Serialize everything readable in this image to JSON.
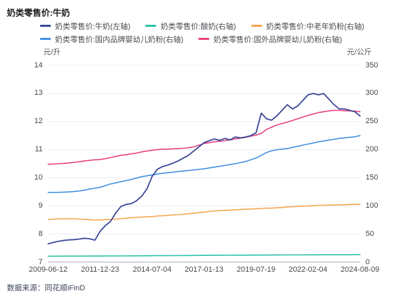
{
  "title": "奶类零售价:牛奶",
  "source": "数据来源：同花顺iFinD",
  "chart_data": {
    "type": "line",
    "title": "奶类零售价:牛奶",
    "grid": true,
    "legend_position": "top",
    "x_tick_labels": [
      "2009-06-12",
      "2011-12-23",
      "2014-07-04",
      "2017-01-13",
      "2019-07-19",
      "2022-02-04",
      "2024-08-09"
    ],
    "left_axis": {
      "unit": "元/升",
      "range": [
        7,
        14
      ],
      "ticks": [
        14,
        13,
        12,
        11,
        10,
        9,
        8,
        7
      ]
    },
    "right_axis": {
      "unit": "元/公斤",
      "range": [
        0,
        350
      ],
      "ticks": [
        350,
        300,
        250,
        200,
        150,
        100,
        50,
        0
      ]
    },
    "legend_rows": [
      [
        0,
        1,
        2
      ],
      [
        3,
        4
      ]
    ],
    "draw_order": [
      1,
      2,
      3,
      4,
      0
    ],
    "series": [
      {
        "name": "奶类零售价:牛奶(左轴)",
        "axis": "left",
        "color": "#3B4697",
        "values": [
          7.65,
          7.7,
          7.74,
          7.77,
          7.79,
          7.8,
          7.82,
          7.85,
          7.83,
          7.78,
          8.1,
          8.3,
          8.45,
          8.75,
          8.98,
          9.05,
          9.08,
          9.18,
          9.35,
          9.6,
          10.05,
          10.3,
          10.4,
          10.45,
          10.52,
          10.6,
          10.7,
          10.8,
          10.95,
          11.1,
          11.25,
          11.32,
          11.38,
          11.33,
          11.4,
          11.35,
          11.45,
          11.42,
          11.45,
          11.5,
          11.6,
          12.3,
          12.1,
          12.05,
          12.2,
          12.4,
          12.6,
          12.45,
          12.55,
          12.75,
          12.95,
          13.0,
          12.95,
          13.0,
          12.8,
          12.6,
          12.45,
          12.45,
          12.4,
          12.35,
          12.2
        ]
      },
      {
        "name": "奶类零售价:酸奶(右轴)",
        "axis": "right",
        "color": "#2AC2A5",
        "values": [
          10.5,
          10.5,
          10.55,
          10.6,
          10.6,
          10.65,
          10.7,
          10.7,
          10.75,
          10.8,
          10.8,
          10.85,
          10.9,
          10.95,
          11.0,
          11.05,
          11.1,
          11.15,
          11.2,
          11.3,
          11.4,
          11.45,
          11.5,
          11.55,
          11.6,
          11.65,
          11.7,
          11.8,
          11.9,
          11.95,
          12.0,
          12.05,
          12.1,
          12.15,
          12.2,
          12.25,
          12.3,
          12.35,
          12.4,
          12.45,
          12.5,
          12.55,
          12.6,
          12.65,
          12.7,
          12.75,
          12.8,
          12.85,
          12.9,
          12.9,
          12.95,
          13.0,
          13.0,
          13.05,
          13.05,
          13.1,
          13.1,
          13.15,
          13.15,
          13.2,
          13.2
        ]
      },
      {
        "name": "奶类零售价:中老年奶粉(右轴)",
        "axis": "right",
        "color": "#F7A64E",
        "values": [
          76,
          76.5,
          77,
          77,
          77,
          77,
          76.5,
          76,
          75.5,
          75,
          75,
          75.5,
          76,
          76.5,
          77.5,
          78,
          79,
          79.5,
          80,
          80.5,
          81,
          82,
          82.5,
          83,
          84,
          84.5,
          85,
          86,
          87,
          88,
          89,
          90,
          91,
          91.5,
          92,
          92.5,
          93,
          93.5,
          94,
          94.5,
          95,
          95.5,
          96,
          96,
          96.5,
          97,
          98,
          98.5,
          99,
          99.5,
          100,
          100.5,
          101,
          101,
          101.5,
          101.5,
          102,
          102,
          102.5,
          102.5,
          103
        ]
      },
      {
        "name": "奶类零售价:国内品牌婴幼儿奶粉(右轴)",
        "axis": "right",
        "color": "#4191E0",
        "values": [
          124,
          124,
          124,
          124.5,
          125,
          125.5,
          126.5,
          128,
          130,
          131.5,
          133,
          136,
          139,
          141,
          143,
          145,
          147,
          149.5,
          152,
          153.5,
          155,
          156.5,
          158,
          159,
          160,
          161,
          162,
          163,
          164,
          165,
          166,
          167.5,
          169,
          170.5,
          172,
          173.5,
          175,
          177,
          179,
          182,
          185,
          190,
          195,
          198,
          200,
          201,
          202,
          204,
          206,
          208,
          210,
          212,
          214,
          215.5,
          217,
          218.5,
          220,
          221,
          222,
          223,
          225
        ]
      },
      {
        "name": "奶类零售价:国外品牌婴幼儿奶粉(右轴)",
        "axis": "right",
        "color": "#E8417F",
        "values": [
          174,
          174.5,
          175,
          175.5,
          176.5,
          177.5,
          178.5,
          180,
          181,
          182,
          182.5,
          184,
          186,
          188,
          190,
          191,
          192.5,
          194,
          196,
          197.5,
          199,
          200,
          201,
          201,
          201.5,
          202,
          202.5,
          203.5,
          205,
          208,
          211,
          212.5,
          214,
          215,
          216,
          217.5,
          219,
          220.5,
          222,
          224,
          226,
          229,
          236,
          240,
          244,
          246.5,
          249,
          252,
          255,
          258,
          261,
          263.5,
          266,
          267.5,
          269,
          270,
          270,
          269.5,
          269,
          268.5,
          267.5
        ]
      }
    ],
    "colors": {
      "gridline": "#ECECF4",
      "axis_line": "#A8A8B4",
      "tick_text": "#46464e"
    }
  }
}
